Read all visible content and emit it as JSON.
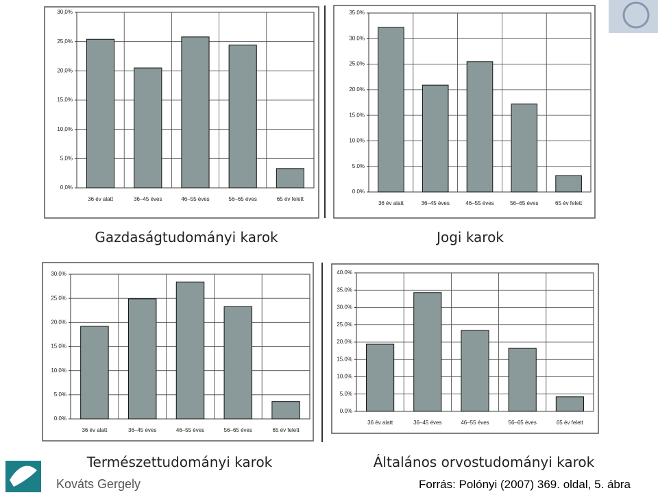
{
  "chart_data": [
    {
      "type": "bar",
      "title": "Gazdaságtudományi karok",
      "categories": [
        "36 év alatt",
        "36–45 éves",
        "46–55 éves",
        "56–65 éves",
        "65 év felett"
      ],
      "values": [
        25.4,
        20.5,
        25.8,
        24.4,
        3.3
      ],
      "color": "#8a9999",
      "ylim": [
        0,
        30
      ],
      "yticks": [
        {
          "value": 0,
          "label": "0,0%"
        },
        {
          "value": 5,
          "label": "5,0%"
        },
        {
          "value": 10,
          "label": "10,0%"
        },
        {
          "value": 15,
          "label": "15,0%"
        },
        {
          "value": 20,
          "label": "20,0%"
        },
        {
          "value": 25,
          "label": "25,0%"
        },
        {
          "value": 30,
          "label": "30,0%"
        }
      ],
      "grid": true
    },
    {
      "type": "bar",
      "title": "Jogi karok",
      "categories": [
        "36 év alatt",
        "36–45 éves",
        "46–55 éves",
        "56–65 éves",
        "65 év felett"
      ],
      "values": [
        32.2,
        20.9,
        25.5,
        17.2,
        3.2
      ],
      "color": "#8a9999",
      "ylim": [
        0,
        35
      ],
      "yticks": [
        {
          "value": 0,
          "label": "0.0%"
        },
        {
          "value": 5,
          "label": "5.0%"
        },
        {
          "value": 10,
          "label": "10.0%"
        },
        {
          "value": 15,
          "label": "15.0%"
        },
        {
          "value": 20,
          "label": "20.0%"
        },
        {
          "value": 25,
          "label": "25.0%"
        },
        {
          "value": 30,
          "label": "30.0%"
        },
        {
          "value": 35,
          "label": "35.0%"
        }
      ],
      "grid": true
    },
    {
      "type": "bar",
      "title": "Természettudományi karok",
      "categories": [
        "36 év alatt",
        "36–45 éves",
        "46–55 éves",
        "56–65 éves",
        "65 év felett"
      ],
      "values": [
        19.2,
        24.9,
        28.4,
        23.3,
        3.6
      ],
      "color": "#8a9999",
      "ylim": [
        0,
        30
      ],
      "yticks": [
        {
          "value": 0,
          "label": "0.0%"
        },
        {
          "value": 5,
          "label": "5.0%"
        },
        {
          "value": 10,
          "label": "10.0%"
        },
        {
          "value": 15,
          "label": "15.0%"
        },
        {
          "value": 20,
          "label": "20.0%"
        },
        {
          "value": 25,
          "label": "25.0%"
        },
        {
          "value": 30,
          "label": "30.0%"
        }
      ],
      "grid": true
    },
    {
      "type": "bar",
      "title": "Általános orvostudományi karok",
      "categories": [
        "36 év alatt",
        "36–45 éves",
        "46–55 éves",
        "56–65 éves",
        "65 év felett"
      ],
      "values": [
        19.4,
        34.3,
        23.4,
        18.2,
        4.2
      ],
      "color": "#8a9999",
      "ylim": [
        0,
        40
      ],
      "yticks": [
        {
          "value": 0,
          "label": "0.0%"
        },
        {
          "value": 5,
          "label": "5.0%"
        },
        {
          "value": 10,
          "label": "10.0%"
        },
        {
          "value": 15,
          "label": "15.0%"
        },
        {
          "value": 20,
          "label": "20.0%"
        },
        {
          "value": 25,
          "label": "25.0%"
        },
        {
          "value": 30,
          "label": "30.0%"
        },
        {
          "value": 35,
          "label": "35.0%"
        },
        {
          "value": 40,
          "label": "40.0%"
        }
      ],
      "grid": true
    }
  ],
  "footer": {
    "author": "Kováts Gergely",
    "source": "Forrás: Polónyi (2007) 369. oldal, 5. ábra"
  }
}
